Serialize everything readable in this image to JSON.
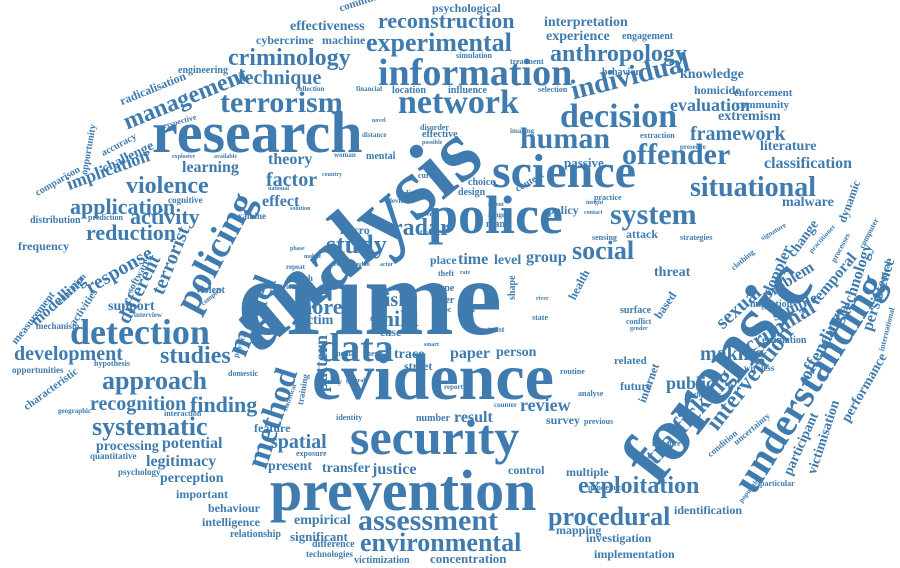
{
  "theme": {
    "word_color": "#3f7bae",
    "background": "#ffffff"
  },
  "words": [
    "crime",
    "analysis",
    "evidence",
    "prevention",
    "forensic",
    "research",
    "security",
    "police",
    "science",
    "information",
    "network",
    "decision",
    "terrorism",
    "policing",
    "detection",
    "model",
    "method",
    "data",
    "experimental",
    "reconstruction",
    "human",
    "individual",
    "offender",
    "situational",
    "system",
    "social",
    "understanding",
    "assessment",
    "environmental",
    "procedural",
    "exploitation",
    "trafficking",
    "intervention",
    "criminology",
    "anthropology",
    "management",
    "technique",
    "violence",
    "activity",
    "application",
    "reduction",
    "response",
    "development",
    "approach",
    "recognition",
    "systematic",
    "studies",
    "finding",
    "study",
    "radar",
    "child",
    "risk",
    "more",
    "victim",
    "pattern",
    "spatial",
    "legitimacy",
    "potential",
    "processing",
    "perception",
    "important",
    "behaviour",
    "intelligence",
    "relationship",
    "significant",
    "empirical",
    "present",
    "transfer",
    "justice",
    "result",
    "paper",
    "person",
    "review",
    "public",
    "making",
    "criminal",
    "sexual",
    "problem",
    "sample",
    "temporal",
    "framework",
    "evaluation",
    "extremism",
    "classification",
    "terrorist",
    "different",
    "modelling",
    "support",
    "effect",
    "factor",
    "theory",
    "learning",
    "implication",
    "effectiveness",
    "cybercrime",
    "machine",
    "communication",
    "psychological",
    "interpretation",
    "experience",
    "engagement",
    "knowledge",
    "homicide",
    "enforcement",
    "community",
    "literature",
    "dynamic",
    "malware",
    "persistence",
    "technology",
    "material",
    "offending",
    "doppler",
    "change",
    "participant",
    "victimisation",
    "performance",
    "identification",
    "implementation",
    "investigation",
    "mapping",
    "concentration",
    "victimization",
    "difference",
    "technologies",
    "quantitative",
    "psychology",
    "interaction",
    "characteristic",
    "opportunities",
    "measurement",
    "frequency",
    "distribution",
    "comparison",
    "opportunity",
    "accuracy",
    "challenge",
    "radicalisation",
    "engineering",
    "perspective",
    "mechanism",
    "activities",
    "education",
    "hypothesis",
    "software",
    "geographic",
    "passive",
    "level",
    "group",
    "time",
    "place",
    "threat",
    "attack",
    "policy",
    "micro",
    "street",
    "trace",
    "survey",
    "control",
    "multiple",
    "location",
    "influence",
    "selection",
    "simulation",
    "treatment",
    "collection",
    "financial",
    "estimation",
    "migration",
    "wireless",
    "strategies",
    "clothing",
    "signature",
    "practitioner",
    "theoretical",
    "international",
    "computer",
    "processes",
    "pandemic",
    "particular",
    "population",
    "condition",
    "uncertainty",
    "theories",
    "measure",
    "previous",
    "analyse",
    "related",
    "future",
    "internet",
    "routine",
    "proc",
    "type",
    "user",
    "impact",
    "state",
    "trust",
    "health",
    "surface",
    "conflict",
    "gender",
    "shape",
    "based",
    "theft",
    "case",
    "cyber",
    "fraud",
    "design",
    "choice",
    "context",
    "imaging",
    "mental",
    "woman",
    "current",
    "digital",
    "device",
    "range",
    "recent",
    "many",
    "sensing",
    "contact",
    "insight",
    "practice",
    "feature",
    "exposure",
    "quality",
    "general",
    "media",
    "thesis",
    "smart",
    "report",
    "counter",
    "number",
    "identity",
    "domestic",
    "physical",
    "statistical",
    "training",
    "search",
    "various",
    "repeat",
    "phase",
    "mobile",
    "violent",
    "complex",
    "prediction",
    "explosive",
    "available",
    "cognitive",
    "examine",
    "national",
    "country",
    "solution",
    "interview",
    "behavior",
    "extraction",
    "presence",
    "possible",
    "disorder",
    "distance",
    "novel",
    "target",
    "london",
    "actor",
    "remain",
    "urban",
    "river",
    "rate",
    "effective"
  ]
}
